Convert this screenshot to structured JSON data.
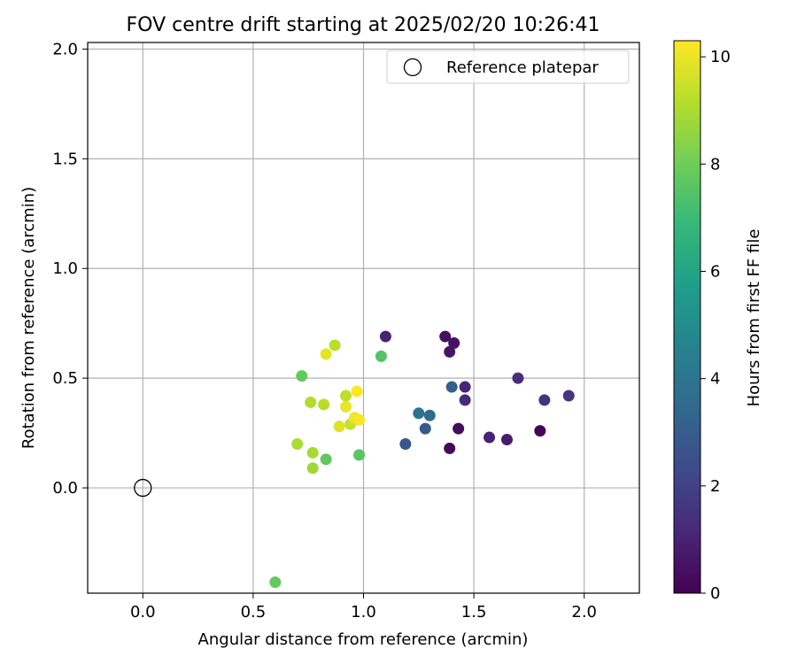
{
  "chart_data": {
    "type": "scatter",
    "title": "FOV centre drift starting at 2025/02/20 10:26:41",
    "xlabel": "Angular distance from reference (arcmin)",
    "ylabel": "Rotation from reference (arcmin)",
    "xlim": [
      -0.25,
      2.25
    ],
    "ylim": [
      -0.48,
      2.03
    ],
    "xticks": [
      "0.0",
      "0.5",
      "1.0",
      "1.5",
      "2.0"
    ],
    "xtick_values": [
      0.0,
      0.5,
      1.0,
      1.5,
      2.0
    ],
    "yticks": [
      "0.0",
      "0.5",
      "1.0",
      "1.5",
      "2.0"
    ],
    "ytick_values": [
      0.0,
      0.5,
      1.0,
      1.5,
      2.0
    ],
    "grid": true,
    "legend": {
      "position": "upper right",
      "entries": [
        "Reference platepar"
      ]
    },
    "reference_point": {
      "x": 0.0,
      "y": 0.0,
      "label": "Reference platepar"
    },
    "colorbar": {
      "label": "Hours from first FF file",
      "colormap": "viridis",
      "range": [
        0,
        10.3
      ],
      "ticks": [
        "0",
        "2",
        "4",
        "6",
        "8",
        "10"
      ],
      "tick_values": [
        0,
        2,
        4,
        6,
        8,
        10
      ]
    },
    "points": [
      {
        "x": 1.8,
        "y": 0.26,
        "h": 0.1
      },
      {
        "x": 1.39,
        "y": 0.18,
        "h": 0.2
      },
      {
        "x": 1.43,
        "y": 0.27,
        "h": 0.3
      },
      {
        "x": 1.37,
        "y": 0.69,
        "h": 0.4
      },
      {
        "x": 1.41,
        "y": 0.66,
        "h": 0.5
      },
      {
        "x": 1.39,
        "y": 0.62,
        "h": 0.6
      },
      {
        "x": 1.65,
        "y": 0.22,
        "h": 0.8
      },
      {
        "x": 1.57,
        "y": 0.23,
        "h": 1.0
      },
      {
        "x": 1.1,
        "y": 0.69,
        "h": 1.0
      },
      {
        "x": 1.46,
        "y": 0.46,
        "h": 1.1
      },
      {
        "x": 1.46,
        "y": 0.4,
        "h": 1.2
      },
      {
        "x": 1.7,
        "y": 0.5,
        "h": 1.4
      },
      {
        "x": 1.82,
        "y": 0.4,
        "h": 1.5
      },
      {
        "x": 1.93,
        "y": 0.42,
        "h": 1.6
      },
      {
        "x": 1.19,
        "y": 0.2,
        "h": 2.7
      },
      {
        "x": 1.28,
        "y": 0.27,
        "h": 2.9
      },
      {
        "x": 1.4,
        "y": 0.46,
        "h": 3.0
      },
      {
        "x": 1.3,
        "y": 0.33,
        "h": 3.6
      },
      {
        "x": 1.25,
        "y": 0.34,
        "h": 3.9
      },
      {
        "x": 1.08,
        "y": 0.6,
        "h": 7.5
      },
      {
        "x": 0.98,
        "y": 0.15,
        "h": 7.6
      },
      {
        "x": 0.83,
        "y": 0.13,
        "h": 7.7
      },
      {
        "x": 0.72,
        "y": 0.51,
        "h": 7.8
      },
      {
        "x": 0.6,
        "y": -0.43,
        "h": 7.8
      },
      {
        "x": 0.77,
        "y": 0.09,
        "h": 8.8
      },
      {
        "x": 0.77,
        "y": 0.16,
        "h": 8.9
      },
      {
        "x": 0.7,
        "y": 0.2,
        "h": 9.0
      },
      {
        "x": 0.76,
        "y": 0.39,
        "h": 9.1
      },
      {
        "x": 0.82,
        "y": 0.38,
        "h": 9.2
      },
      {
        "x": 0.87,
        "y": 0.65,
        "h": 9.2
      },
      {
        "x": 0.92,
        "y": 0.42,
        "h": 9.3
      },
      {
        "x": 0.94,
        "y": 0.29,
        "h": 9.4
      },
      {
        "x": 0.89,
        "y": 0.28,
        "h": 9.8
      },
      {
        "x": 0.83,
        "y": 0.61,
        "h": 9.9
      },
      {
        "x": 0.92,
        "y": 0.37,
        "h": 10.0
      },
      {
        "x": 0.96,
        "y": 0.32,
        "h": 10.1
      },
      {
        "x": 0.98,
        "y": 0.31,
        "h": 10.2
      },
      {
        "x": 0.97,
        "y": 0.44,
        "h": 10.3
      }
    ]
  }
}
